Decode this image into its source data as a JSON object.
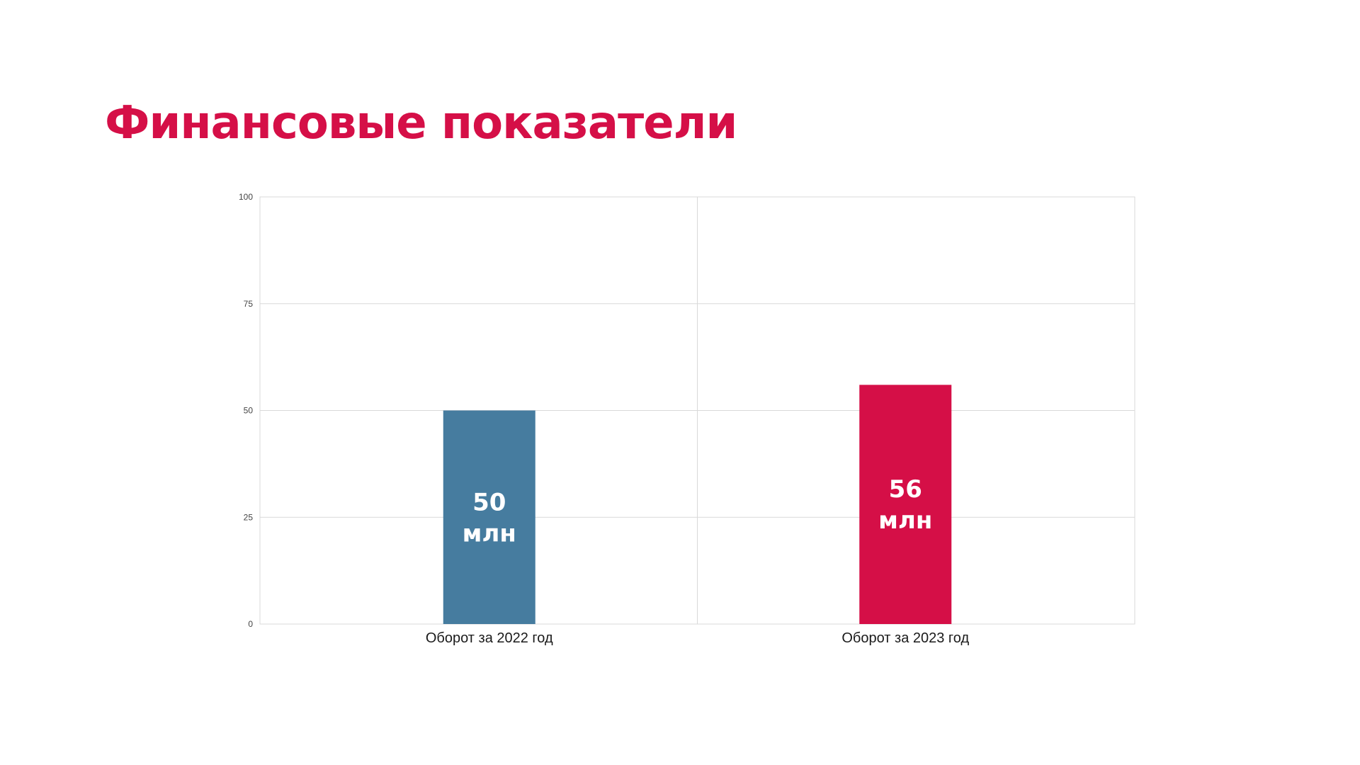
{
  "slide": {
    "title": "Финансовые показатели"
  },
  "colors": {
    "accent": "#D50F47",
    "series_2022": "#467C9F",
    "series_2023": "#D50F47",
    "grid": "#D9D9D9",
    "label_text": "#FFFFFF"
  },
  "chart_data": {
    "type": "bar",
    "title": "",
    "xlabel": "",
    "ylabel": "",
    "categories": [
      "Оборот за 2022 год",
      "Оборот за 2023 год"
    ],
    "values": [
      50,
      56
    ],
    "bar_colors": [
      "#467C9F",
      "#D50F47"
    ],
    "data_labels": [
      [
        "50",
        "млн"
      ],
      [
        "56",
        "млн"
      ]
    ],
    "ylim": [
      0,
      100
    ],
    "yticks": [
      0,
      25,
      50,
      75,
      100
    ],
    "ytick_labels": [
      "0",
      "25",
      "50",
      "75",
      "100"
    ],
    "grid": true,
    "legend": "none"
  }
}
